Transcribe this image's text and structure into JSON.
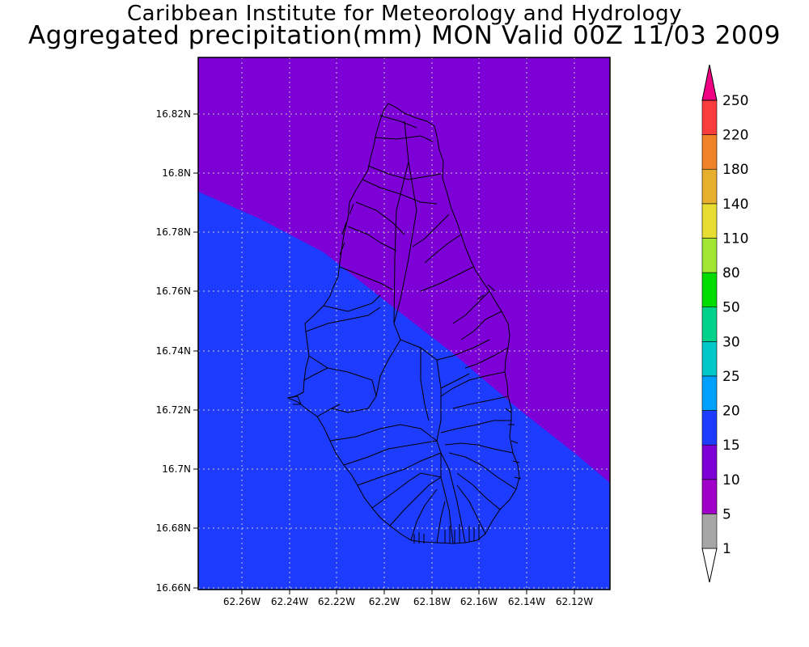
{
  "header": {
    "title": "Caribbean Institute for Meteorology and Hydrology",
    "subtitle": "Aggregated precipitation(mm) MON Valid 00Z 11/03 2009"
  },
  "map": {
    "x_ticks": [
      "62.26W",
      "62.24W",
      "62.22W",
      "62.2W",
      "62.18W",
      "62.16W",
      "62.14W",
      "62.12W"
    ],
    "y_ticks": [
      "16.82N",
      "16.8N",
      "16.78N",
      "16.76N",
      "16.74N",
      "16.72N",
      "16.7N",
      "16.68N",
      "16.66N"
    ],
    "regions": [
      {
        "range": "10-15",
        "color": "#7d00d7"
      },
      {
        "range": "15-20",
        "color": "#1e3cff"
      }
    ]
  },
  "colorbar": {
    "levels": [
      "1",
      "5",
      "10",
      "15",
      "20",
      "25",
      "30",
      "50",
      "80",
      "110",
      "140",
      "180",
      "220",
      "250"
    ],
    "colors": [
      "#a6a6a6",
      "#a000c8",
      "#7d00d7",
      "#1e3cff",
      "#00a0ff",
      "#00c8c8",
      "#00d28c",
      "#00dc00",
      "#a0e632",
      "#e6dc32",
      "#e6af2d",
      "#f08228",
      "#fa3c3c",
      "#f00082"
    ]
  },
  "chart_data": {
    "type": "heatmap",
    "title": "Caribbean Institute for Meteorology and Hydrology",
    "subtitle": "Aggregated precipitation(mm) MON Valid 00Z 11/03 2009",
    "xlim": [
      "62.28W",
      "62.107W"
    ],
    "ylim": [
      "16.66N",
      "16.838N"
    ],
    "grid": true,
    "legend": "right",
    "classes": [
      {
        "range": [
          10,
          15
        ],
        "area": "northeast of boundary"
      },
      {
        "range": [
          15,
          20
        ],
        "area": "southwest of boundary"
      }
    ]
  }
}
